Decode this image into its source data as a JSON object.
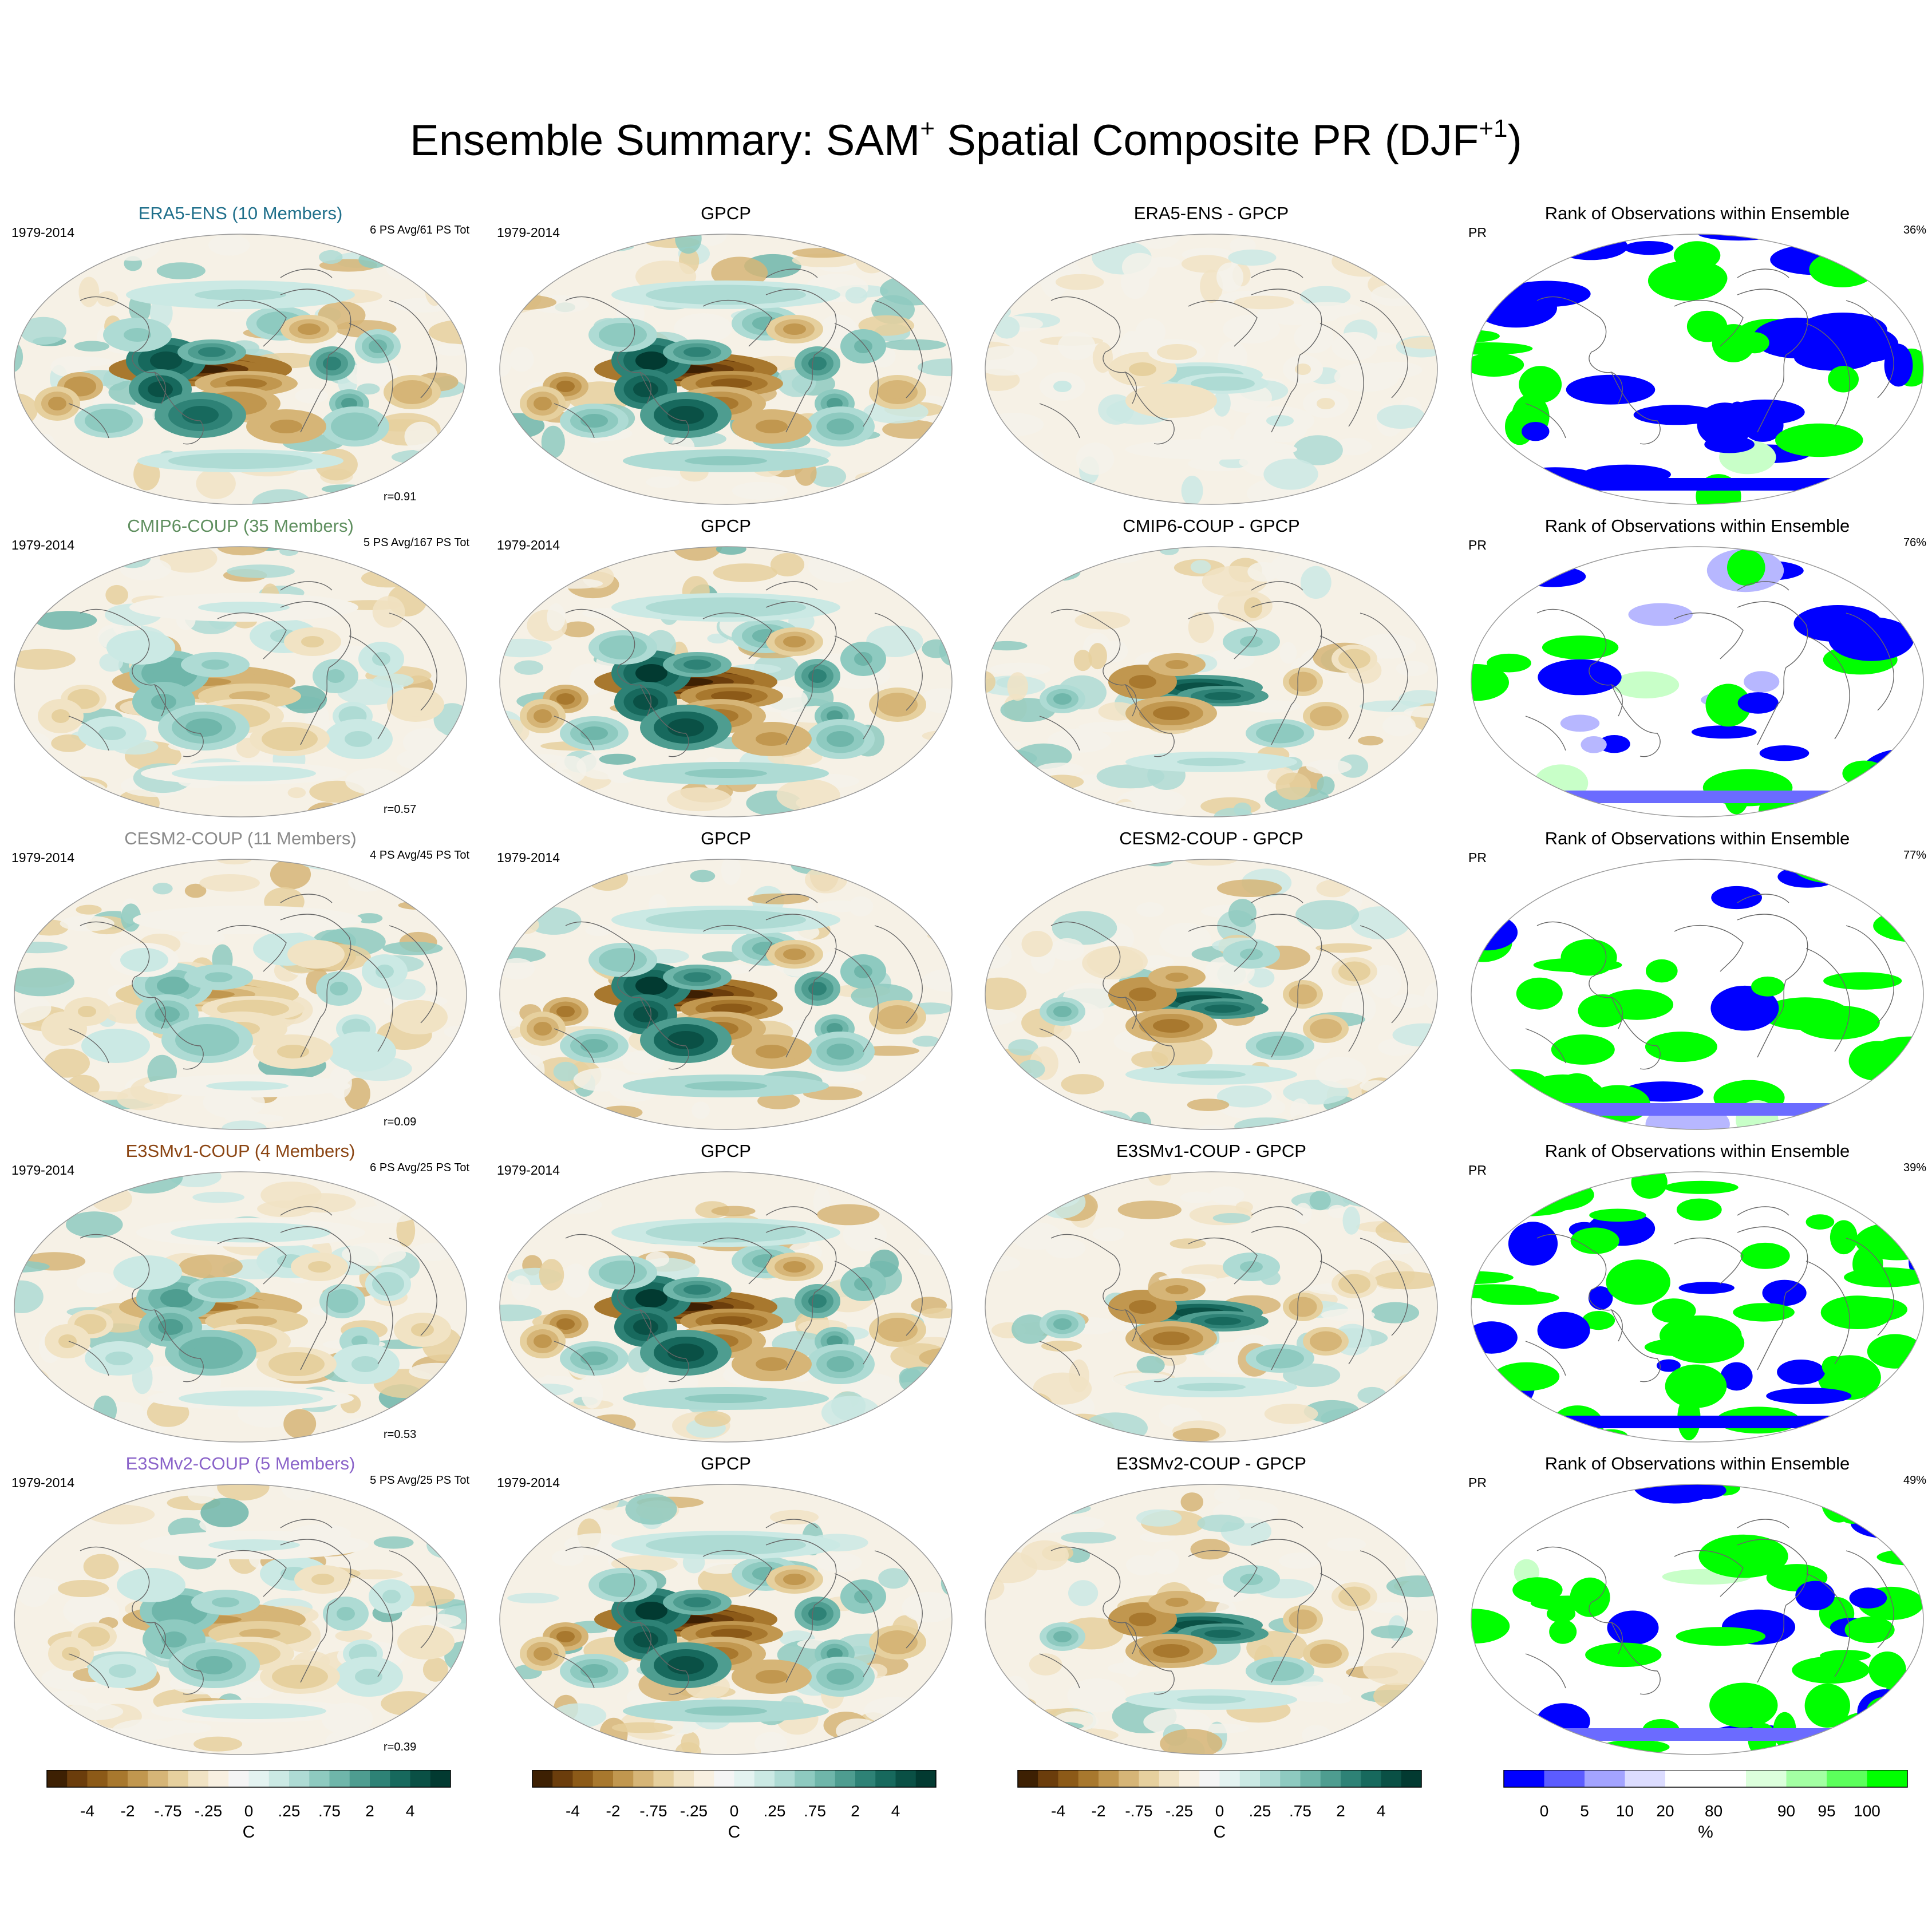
{
  "figure": {
    "title_main": "Ensemble Summary: SAM",
    "title_sup1": "+",
    "title_mid": " Spatial Composite PR (DJF",
    "title_sup2": "+1",
    "title_end": ")"
  },
  "colors": {
    "brown_dark": "#543005",
    "teal_dark": "#003c30",
    "neutral": "#f5f5f5",
    "rank_blue": "#0000ff",
    "rank_green": "#00ff00",
    "coastline": "#555555",
    "ensemble_names": [
      "#1f6f8b",
      "#5f8f5f",
      "#8a8a8a",
      "#8b4513",
      "#8a63c9"
    ]
  },
  "rows": [
    {
      "ensemble": {
        "title": "ERA5-ENS (10 Members)",
        "period": "1979-2014",
        "stats": "6 PS Avg/61 PS Tot",
        "r": "r=0.91"
      },
      "obs": {
        "title": "GPCP",
        "period": "1979-2014"
      },
      "diff": {
        "title": "ERA5-ENS - GPCP"
      },
      "rank": {
        "title": "Rank of Observations within Ensemble",
        "var": "PR",
        "pct": "36%"
      }
    },
    {
      "ensemble": {
        "title": "CMIP6-COUP (35 Members)",
        "period": "1979-2014",
        "stats": "5 PS Avg/167 PS Tot",
        "r": "r=0.57"
      },
      "obs": {
        "title": "GPCP",
        "period": "1979-2014"
      },
      "diff": {
        "title": "CMIP6-COUP - GPCP"
      },
      "rank": {
        "title": "Rank of Observations within Ensemble",
        "var": "PR",
        "pct": "76%"
      }
    },
    {
      "ensemble": {
        "title": "CESM2-COUP (11 Members)",
        "period": "1979-2014",
        "stats": "4 PS Avg/45 PS Tot",
        "r": "r=0.09"
      },
      "obs": {
        "title": "GPCP",
        "period": "1979-2014"
      },
      "diff": {
        "title": "CESM2-COUP - GPCP"
      },
      "rank": {
        "title": "Rank of Observations within Ensemble",
        "var": "PR",
        "pct": "77%"
      }
    },
    {
      "ensemble": {
        "title": "E3SMv1-COUP (4 Members)",
        "period": "1979-2014",
        "stats": "6 PS Avg/25 PS Tot",
        "r": "r=0.53"
      },
      "obs": {
        "title": "GPCP",
        "period": "1979-2014"
      },
      "diff": {
        "title": "E3SMv1-COUP - GPCP"
      },
      "rank": {
        "title": "Rank of Observations within Ensemble",
        "var": "PR",
        "pct": "39%"
      }
    },
    {
      "ensemble": {
        "title": "E3SMv2-COUP (5 Members)",
        "period": "1979-2014",
        "stats": "5 PS Avg/25 PS Tot",
        "r": "r=0.39"
      },
      "obs": {
        "title": "GPCP",
        "period": "1979-2014"
      },
      "diff": {
        "title": "E3SMv2-COUP - GPCP"
      },
      "rank": {
        "title": "Rank of Observations within Ensemble",
        "var": "PR",
        "pct": "49%"
      }
    }
  ],
  "chart_data": [
    {
      "type": "heatmap",
      "name": "anomaly colorbar",
      "unit": "C",
      "tick_labels": [
        "-4",
        "-2",
        "-.75",
        "-.25",
        "0",
        ".25",
        ".75",
        "2",
        "4"
      ],
      "tick_values": [
        -4,
        -2,
        -0.75,
        -0.25,
        0,
        0.25,
        0.75,
        2,
        4
      ],
      "colors": [
        "#3d2003",
        "#6b3d0c",
        "#8c5a18",
        "#a8782e",
        "#c1974f",
        "#d6b577",
        "#e6d09e",
        "#f1e3c4",
        "#f8f0e1",
        "#f5f5f5",
        "#e4f3f1",
        "#cbe9e4",
        "#aedbd4",
        "#8ecac0",
        "#6fb6aa",
        "#4e9d90",
        "#2e8276",
        "#17695d",
        "#0a5045",
        "#023a31"
      ],
      "repeated_in_columns": 3
    },
    {
      "type": "heatmap",
      "name": "rank colorbar",
      "unit": "%",
      "tick_labels": [
        "0",
        "5",
        "10",
        "20",
        "80",
        "90",
        "95",
        "100"
      ],
      "tick_values": [
        0,
        5,
        10,
        20,
        80,
        90,
        95,
        100
      ],
      "colors": [
        "#0000ff",
        "#5c5cff",
        "#a3a3ff",
        "#dcdcff",
        "#ffffff",
        "#ffffff",
        "#dcffdc",
        "#a3ffa3",
        "#5cff5c",
        "#00ff00"
      ]
    }
  ]
}
